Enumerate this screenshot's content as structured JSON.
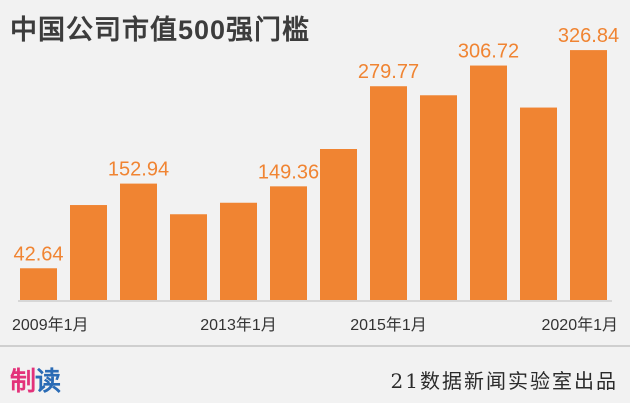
{
  "title": "中国公司市值500强门槛",
  "colors": {
    "bar": "#f08432",
    "label": "#f08432",
    "axis": "#d7d7d7",
    "tick": "#333333"
  },
  "chart_data": {
    "type": "bar",
    "title": "中国公司市值500强门槛",
    "xlabel": "",
    "ylabel": "",
    "ylim": [
      0,
      340
    ],
    "grid": false,
    "categories": [
      "2009年1月",
      "",
      "",
      "",
      "2013年1月",
      "",
      "",
      "2015年1月",
      "",
      "",
      "",
      "2020年1月"
    ],
    "values": [
      42.64,
      125,
      152.94,
      113,
      128,
      149.36,
      198,
      279.77,
      268,
      306.72,
      252,
      326.84
    ],
    "data_labels": [
      {
        "index": 0,
        "text": "42.64"
      },
      {
        "index": 2,
        "text": "152.94"
      },
      {
        "index": 5,
        "text": "149.36"
      },
      {
        "index": 7,
        "text": "279.77"
      },
      {
        "index": 9,
        "text": "306.72"
      },
      {
        "index": 11,
        "text": "326.84"
      }
    ]
  },
  "footer": {
    "logo_part1": "制",
    "logo_part2": "读",
    "source": "21数据新闻实验室出品"
  }
}
